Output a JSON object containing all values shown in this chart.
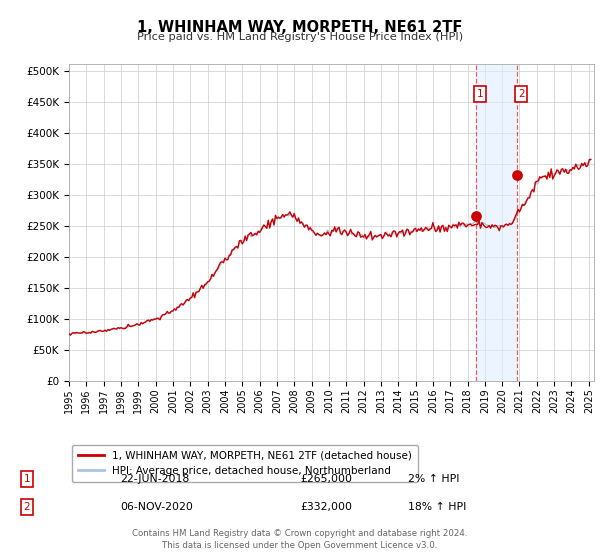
{
  "title": "1, WHINHAM WAY, MORPETH, NE61 2TF",
  "subtitle": "Price paid vs. HM Land Registry's House Price Index (HPI)",
  "legend_line1": "1, WHINHAM WAY, MORPETH, NE61 2TF (detached house)",
  "legend_line2": "HPI: Average price, detached house, Northumberland",
  "footer1": "Contains HM Land Registry data © Crown copyright and database right 2024.",
  "footer2": "This data is licensed under the Open Government Licence v3.0.",
  "hpi_color": "#a8c4e0",
  "price_color": "#cc0000",
  "marker_color": "#cc0000",
  "shade_color": "#ddeeff",
  "sale1_date": 2018.47,
  "sale1_price": 265000,
  "sale1_label": "22-JUN-2018",
  "sale1_pct": "2%",
  "sale2_date": 2020.85,
  "sale2_price": 332000,
  "sale2_label": "06-NOV-2020",
  "sale2_pct": "18%",
  "xmin": 1995.0,
  "xmax": 2025.3,
  "ymin": 0,
  "ymax": 510000,
  "yticks": [
    0,
    50000,
    100000,
    150000,
    200000,
    250000,
    300000,
    350000,
    400000,
    450000,
    500000
  ],
  "xticks": [
    1995,
    1996,
    1997,
    1998,
    1999,
    2000,
    2001,
    2002,
    2003,
    2004,
    2005,
    2006,
    2007,
    2008,
    2009,
    2010,
    2011,
    2012,
    2013,
    2014,
    2015,
    2016,
    2017,
    2018,
    2019,
    2020,
    2021,
    2022,
    2023,
    2024,
    2025
  ],
  "background_color": "#ffffff",
  "grid_color": "#cccccc"
}
